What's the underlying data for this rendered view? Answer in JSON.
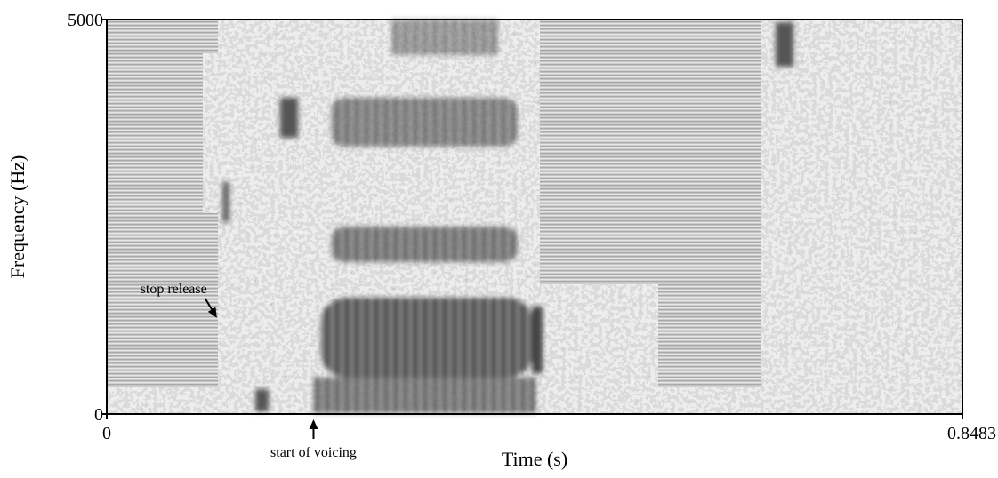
{
  "chart_data": {
    "type": "spectrogram",
    "x_label": "Time (s)",
    "y_label": "Frequency (Hz)",
    "xlim": [
      0,
      0.8483
    ],
    "ylim": [
      0,
      5000
    ],
    "xticks": [
      0,
      0.8483
    ],
    "yticks": [
      0,
      5000
    ],
    "annotations": [
      {
        "text": "stop release",
        "x": 0.11
      },
      {
        "text": "start of voicing",
        "x": 0.205
      }
    ]
  }
}
